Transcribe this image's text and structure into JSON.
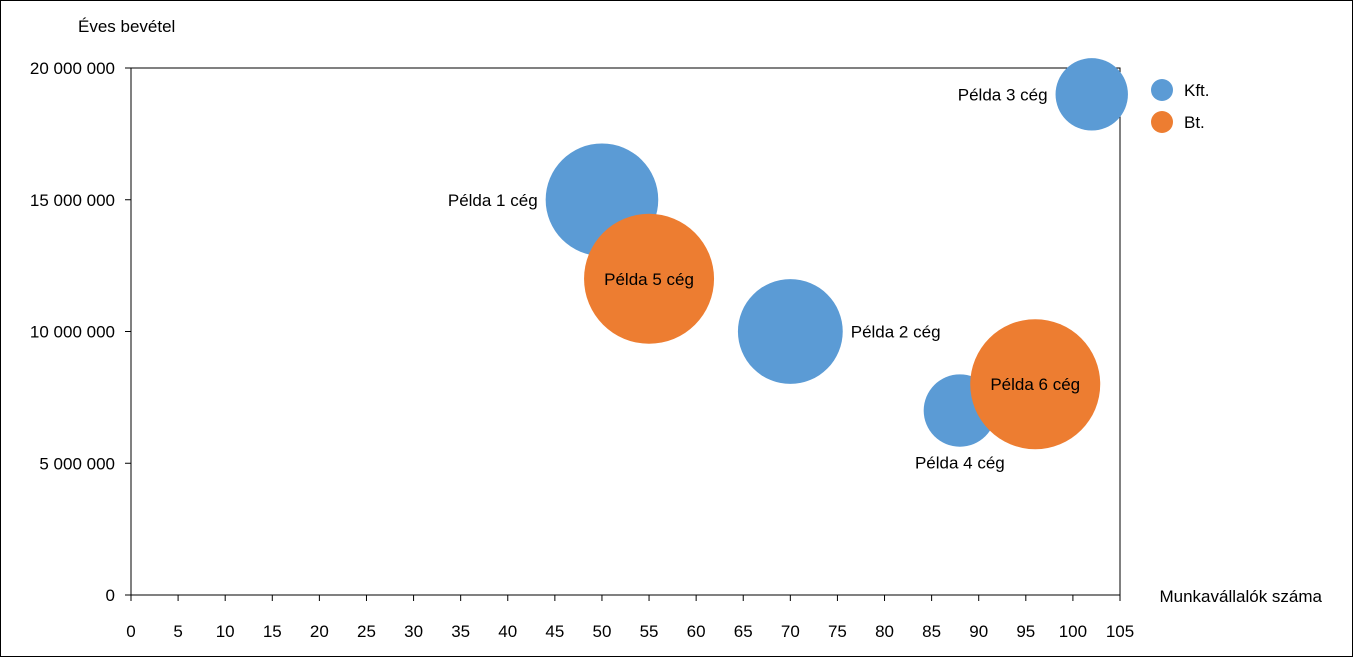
{
  "chart_data": {
    "type": "bubble",
    "ylabel": "Éves bevétel",
    "xlabel": "Munkavállalók száma",
    "xlim": [
      0,
      105
    ],
    "ylim": [
      0,
      20000000
    ],
    "x_ticks": [
      "0",
      "5",
      "10",
      "15",
      "20",
      "25",
      "30",
      "35",
      "40",
      "45",
      "50",
      "55",
      "60",
      "65",
      "70",
      "75",
      "80",
      "85",
      "90",
      "95",
      "100",
      "105"
    ],
    "y_ticks": [
      "0",
      "5 000 000",
      "10 000 000",
      "15 000 000",
      "20 000 000"
    ],
    "grid": false,
    "legend_position": "right",
    "series": [
      {
        "name": "Kft.",
        "color": "#5B9BD5",
        "points": [
          {
            "label": "Példa 1 cég",
            "x": 50,
            "y": 15000000,
            "size": 0.75,
            "label_pos": "left"
          },
          {
            "label": "Példa 2 cég",
            "x": 70,
            "y": 10000000,
            "size": 0.65,
            "label_pos": "right"
          },
          {
            "label": "Példa 3 cég",
            "x": 102,
            "y": 19000000,
            "size": 0.31,
            "label_pos": "left"
          },
          {
            "label": "Példa 4 cég",
            "x": 88,
            "y": 7000000,
            "size": 0.31,
            "label_pos": "below"
          }
        ]
      },
      {
        "name": "Bt.",
        "color": "#ED7D31",
        "points": [
          {
            "label": "Példa 5 cég",
            "x": 55,
            "y": 12000000,
            "size": 1.0,
            "label_pos": "center"
          },
          {
            "label": "Példa 6 cég",
            "x": 96,
            "y": 8000000,
            "size": 1.0,
            "label_pos": "center"
          }
        ]
      }
    ]
  }
}
